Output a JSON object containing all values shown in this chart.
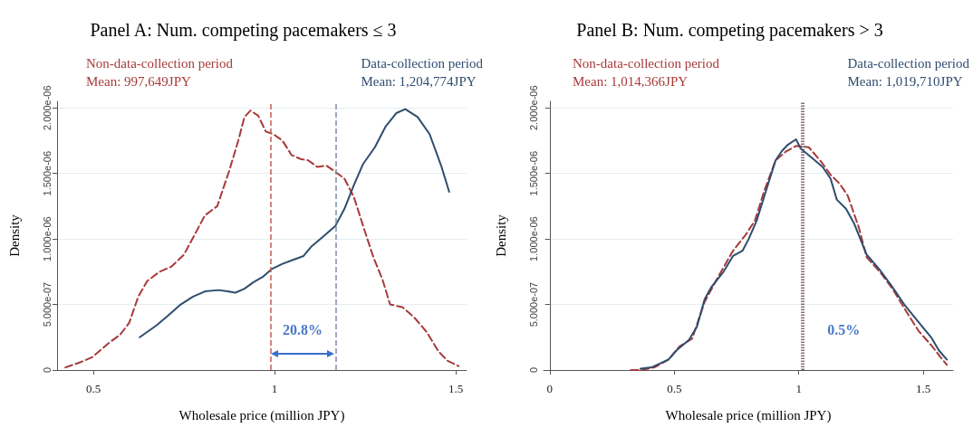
{
  "chart_data": [
    {
      "type": "line",
      "title": "Panel A: Num. competing pacemakers ≤ 3",
      "xlabel": "Wholesale price (million JPY)",
      "ylabel": "Density",
      "legend": "top",
      "grid": "y",
      "xlim": [
        0.4,
        1.53
      ],
      "xticks": [
        0.5,
        1,
        1.5
      ],
      "ylim": [
        0,
        2.05e-06
      ],
      "yticks": [
        {
          "value": 0,
          "label": "0"
        },
        {
          "value": 5e-07,
          "label": "5.000e-07"
        },
        {
          "value": 1e-06,
          "label": "1.000e-06"
        },
        {
          "value": 1.5e-06,
          "label": "1.500e-06"
        },
        {
          "value": 2e-06,
          "label": "2.000e-06"
        }
      ],
      "series": [
        {
          "name": "Non-data-collection period",
          "color": "#a83a3a",
          "line_style": "dashed",
          "x": [
            0.423,
            0.465,
            0.498,
            0.54,
            0.574,
            0.599,
            0.624,
            0.649,
            0.683,
            0.716,
            0.75,
            0.783,
            0.808,
            0.842,
            0.875,
            0.9,
            0.917,
            0.934,
            0.955,
            0.976,
            0.997,
            1.022,
            1.047,
            1.072,
            1.093,
            1.118,
            1.143,
            1.164,
            1.193,
            1.219,
            1.248,
            1.273,
            1.298,
            1.319,
            1.353,
            1.386,
            1.42,
            1.453,
            1.478,
            1.508
          ],
          "values": [
            2e-08,
            6e-08,
            1e-07,
            2e-07,
            2.7e-07,
            3.6e-07,
            5.6e-07,
            6.8e-07,
            7.5e-07,
            7.9e-07,
            8.8e-07,
            1.05e-06,
            1.18e-06,
            1.25e-06,
            1.52e-06,
            1.75e-06,
            1.93e-06,
            1.98e-06,
            1.94e-06,
            1.82e-06,
            1.8e-06,
            1.75e-06,
            1.64e-06,
            1.61e-06,
            1.6e-06,
            1.55e-06,
            1.56e-06,
            1.52e-06,
            1.46e-06,
            1.32e-06,
            1.07e-06,
            8.6e-07,
            6.9e-07,
            5e-07,
            4.8e-07,
            4e-07,
            2.9e-07,
            1.4e-07,
            7e-08,
            3e-08
          ]
        },
        {
          "name": "Data-collection period",
          "color": "#2e4d6e",
          "line_style": "solid",
          "x": [
            0.628,
            0.674,
            0.708,
            0.741,
            0.775,
            0.808,
            0.846,
            0.871,
            0.892,
            0.917,
            0.942,
            0.967,
            0.992,
            1.022,
            1.051,
            1.08,
            1.101,
            1.135,
            1.168,
            1.193,
            1.219,
            1.244,
            1.277,
            1.307,
            1.336,
            1.361,
            1.395,
            1.428,
            1.461,
            1.482
          ],
          "values": [
            2.5e-07,
            3.4e-07,
            4.2e-07,
            5e-07,
            5.6e-07,
            6e-07,
            6.1e-07,
            6e-07,
            5.9e-07,
            6.2e-07,
            6.7e-07,
            7.1e-07,
            7.7e-07,
            8.1e-07,
            8.4e-07,
            8.7e-07,
            9.4e-07,
            1.02e-06,
            1.1e-06,
            1.23e-06,
            1.41e-06,
            1.57e-06,
            1.7e-06,
            1.86e-06,
            1.96e-06,
            1.99e-06,
            1.93e-06,
            1.8e-06,
            1.55e-06,
            1.36e-06
          ]
        }
      ],
      "ref_lines": [
        {
          "axis": "x",
          "value": 0.99,
          "color": "#c0604d",
          "line_style": "dashed"
        },
        {
          "axis": "x",
          "value": 1.165,
          "color": "#7f8fa6",
          "line_style": "dashed"
        }
      ],
      "annotations": [
        "Mean: 997,649JPY",
        "Mean: 1,204,774JPY",
        "20.8%"
      ]
    },
    {
      "type": "line",
      "title": "Panel B: Num. competing pacemakers > 3",
      "xlabel": "Wholesale price (million JPY)",
      "ylabel": "Density",
      "legend": "top",
      "grid": "y",
      "xlim": [
        -0.025,
        1.62
      ],
      "xticks": [
        0,
        0.5,
        1,
        1.5
      ],
      "ylim": [
        0,
        2.05e-06
      ],
      "yticks": [
        {
          "value": 0,
          "label": "0"
        },
        {
          "value": 5e-07,
          "label": "5.000e-07"
        },
        {
          "value": 1e-06,
          "label": "1.000e-06"
        },
        {
          "value": 1.5e-06,
          "label": "1.500e-06"
        },
        {
          "value": 2e-06,
          "label": "2.000e-06"
        }
      ],
      "series": [
        {
          "name": "Non-data-collection period",
          "color": "#a83a3a",
          "line_style": "dashed",
          "x": [
            0.326,
            0.37,
            0.42,
            0.477,
            0.521,
            0.572,
            0.622,
            0.673,
            0.736,
            0.786,
            0.824,
            0.862,
            0.907,
            0.951,
            0.989,
            1.04,
            1.09,
            1.128,
            1.165,
            1.197,
            1.241,
            1.273,
            1.33,
            1.38,
            1.431,
            1.481,
            1.532,
            1.569,
            1.595
          ],
          "values": [
            0,
            0,
            2e-08,
            8e-08,
            1.8e-07,
            2.4e-07,
            5.2e-07,
            7e-07,
            9.1e-07,
            1.03e-06,
            1.14e-06,
            1.37e-06,
            1.6e-06,
            1.67e-06,
            1.71e-06,
            1.7e-06,
            1.59e-06,
            1.49e-06,
            1.42e-06,
            1.33e-06,
            1.09e-06,
            8.6e-07,
            7.4e-07,
            6.1e-07,
            4.5e-07,
            3e-07,
            1.9e-07,
            1e-07,
            4e-08
          ]
        },
        {
          "name": "Data-collection period",
          "color": "#2e4d6e",
          "line_style": "solid",
          "x": [
            0.364,
            0.408,
            0.477,
            0.509,
            0.559,
            0.591,
            0.622,
            0.648,
            0.698,
            0.736,
            0.774,
            0.799,
            0.831,
            0.869,
            0.907,
            0.932,
            0.957,
            0.989,
            1.008,
            1.052,
            1.096,
            1.128,
            1.153,
            1.19,
            1.222,
            1.273,
            1.323,
            1.374,
            1.424,
            1.475,
            1.532,
            1.563,
            1.595
          ],
          "values": [
            1e-08,
            2e-08,
            8e-08,
            1.5e-07,
            2.3e-07,
            3.3e-07,
            5.4e-07,
            6.3e-07,
            7.5e-07,
            8.7e-07,
            9.1e-07,
            1e-06,
            1.14e-06,
            1.37e-06,
            1.6e-06,
            1.67e-06,
            1.72e-06,
            1.76e-06,
            1.69e-06,
            1.62e-06,
            1.55e-06,
            1.46e-06,
            1.3e-06,
            1.23e-06,
            1.12e-06,
            8.8e-07,
            7.7e-07,
            6.4e-07,
            5e-07,
            3.8e-07,
            2.5e-07,
            1.5e-07,
            8e-08
          ]
        }
      ],
      "ref_lines": [
        {
          "axis": "x",
          "value": 1.014,
          "color": "#8b3a3a",
          "line_style": "dotted"
        },
        {
          "axis": "x",
          "value": 1.02,
          "color": "#2e4d6e",
          "line_style": "dotted"
        }
      ],
      "annotations": [
        "Mean: 1,014,366JPY",
        "Mean: 1,019,710JPY",
        "0.5%"
      ]
    }
  ]
}
